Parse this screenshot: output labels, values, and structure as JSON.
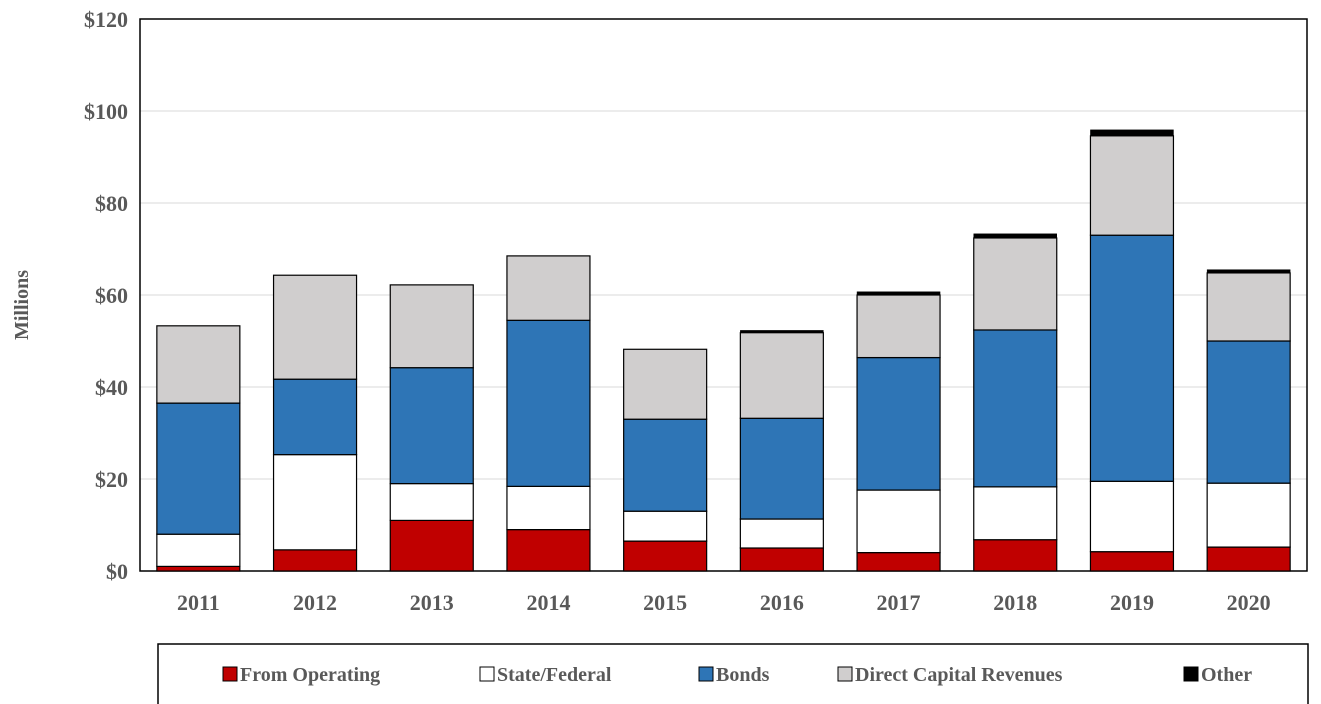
{
  "chart_data": {
    "type": "bar",
    "stacked": true,
    "title": "",
    "xlabel": "",
    "ylabel": "Millions",
    "ylim": [
      0,
      120
    ],
    "y_ticks": [
      0,
      20,
      40,
      60,
      80,
      100,
      120
    ],
    "y_tick_labels": [
      "$0",
      "$20",
      "$40",
      "$60",
      "$80",
      "$100",
      "$120"
    ],
    "grid": "horizontal",
    "legend_position": "bottom",
    "categories": [
      "2011",
      "2012",
      "2013",
      "2014",
      "2015",
      "2016",
      "2017",
      "2018",
      "2019",
      "2020"
    ],
    "series": [
      {
        "name": "From Operating",
        "color": "#c00000",
        "values": [
          1,
          4.6,
          11,
          9,
          6.5,
          5,
          4,
          6.8,
          4.2,
          5.2
        ]
      },
      {
        "name": "State/Federal",
        "color": "#ffffff",
        "values": [
          7,
          20.7,
          8,
          9.4,
          6.5,
          6.3,
          13.6,
          11.5,
          15.3,
          13.9
        ]
      },
      {
        "name": "Bonds",
        "color": "#2e75b6",
        "values": [
          28.5,
          16.4,
          25.2,
          36.1,
          20,
          21.9,
          28.8,
          34.1,
          53.5,
          30.9
        ]
      },
      {
        "name": "Direct Capital Revenues",
        "color": "#d0cece",
        "values": [
          16.8,
          22.6,
          18,
          14,
          15.2,
          18.6,
          13.6,
          20,
          21.6,
          14.8
        ]
      },
      {
        "name": "Other",
        "color": "#000000",
        "values": [
          0,
          0,
          0,
          0,
          0,
          0.5,
          0.7,
          0.9,
          1.3,
          0.7
        ]
      }
    ]
  }
}
